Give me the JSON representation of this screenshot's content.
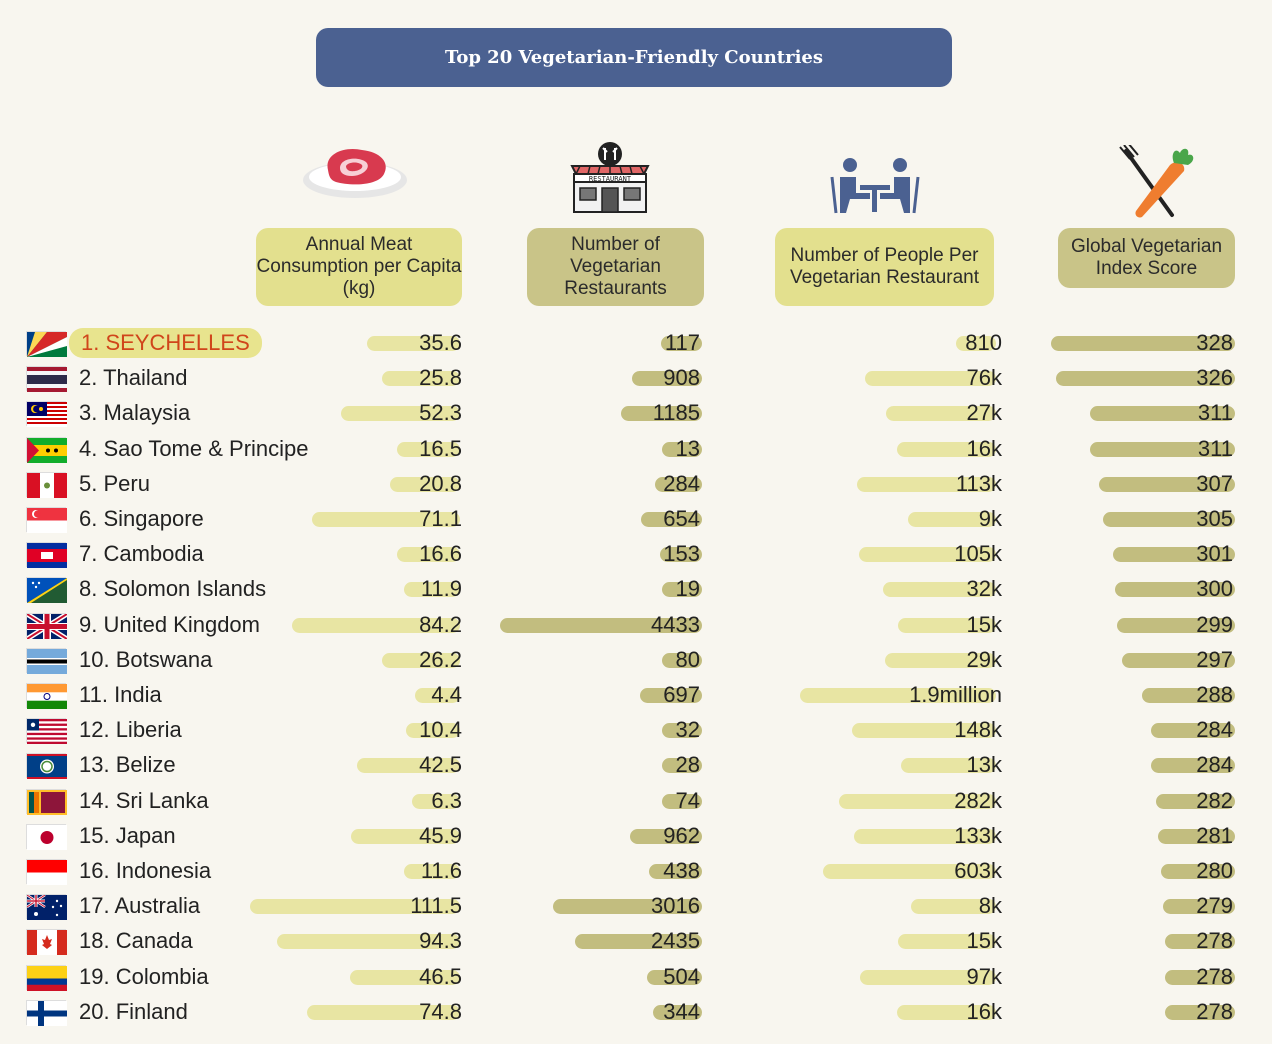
{
  "title": "Top 20 Vegetarian-Friendly Countries",
  "columns": [
    {
      "key": "meat",
      "label": "Annual Meat Consumption per Capita (kg)",
      "icon": "meat-icon"
    },
    {
      "key": "restaurants",
      "label": "Number of Vegetarian Restaurants",
      "icon": "restaurant-icon"
    },
    {
      "key": "people",
      "label": "Number of People Per Vegetarian Restaurant",
      "icon": "people-icon"
    },
    {
      "key": "score",
      "label": "Global Vegetarian Index Score",
      "icon": "carrot-fork-icon"
    }
  ],
  "colors": {
    "title_bg": "#4b6191",
    "light_bar": "#e8e5a3",
    "dark_bar": "#c2bd7f",
    "highlight_text": "#d0451b"
  },
  "chart_data": {
    "type": "table",
    "title": "Top 20 Vegetarian-Friendly Countries",
    "rows": [
      {
        "country": "1. SEYCHELLES",
        "meat": 35.6,
        "meat_label": "35.6",
        "restaurants": 117,
        "restaurants_label": "117",
        "people": 810,
        "people_label": "810",
        "score": 328,
        "score_label": "328"
      },
      {
        "country": "2. Thailand",
        "meat": 25.8,
        "meat_label": "25.8",
        "restaurants": 908,
        "restaurants_label": "908",
        "people": 76000,
        "people_label": "76k",
        "score": 326,
        "score_label": "326"
      },
      {
        "country": "3. Malaysia",
        "meat": 52.3,
        "meat_label": "52.3",
        "restaurants": 1185,
        "restaurants_label": "1185",
        "people": 27000,
        "people_label": "27k",
        "score": 311,
        "score_label": "311"
      },
      {
        "country": "4. Sao Tome & Principe",
        "meat": 16.5,
        "meat_label": "16.5",
        "restaurants": 13,
        "restaurants_label": "13",
        "people": 16000,
        "people_label": "16k",
        "score": 311,
        "score_label": "311"
      },
      {
        "country": "5. Peru",
        "meat": 20.8,
        "meat_label": "20.8",
        "restaurants": 284,
        "restaurants_label": "284",
        "people": 113000,
        "people_label": "113k",
        "score": 307,
        "score_label": "307"
      },
      {
        "country": "6. Singapore",
        "meat": 71.1,
        "meat_label": "71.1",
        "restaurants": 654,
        "restaurants_label": "654",
        "people": 9000,
        "people_label": "9k",
        "score": 305,
        "score_label": "305"
      },
      {
        "country": "7. Cambodia",
        "meat": 16.6,
        "meat_label": "16.6",
        "restaurants": 153,
        "restaurants_label": "153",
        "people": 105000,
        "people_label": "105k",
        "score": 301,
        "score_label": "301"
      },
      {
        "country": "8. Solomon Islands",
        "meat": 11.9,
        "meat_label": "11.9",
        "restaurants": 19,
        "restaurants_label": "19",
        "people": 32000,
        "people_label": "32k",
        "score": 300,
        "score_label": "300"
      },
      {
        "country": "9. United Kingdom",
        "meat": 84.2,
        "meat_label": "84.2",
        "restaurants": 4433,
        "restaurants_label": "4433",
        "people": 15000,
        "people_label": "15k",
        "score": 299,
        "score_label": "299"
      },
      {
        "country": "10. Botswana",
        "meat": 26.2,
        "meat_label": "26.2",
        "restaurants": 80,
        "restaurants_label": "80",
        "people": 29000,
        "people_label": "29k",
        "score": 297,
        "score_label": "297"
      },
      {
        "country": "11. India",
        "meat": 4.4,
        "meat_label": "4.4",
        "restaurants": 697,
        "restaurants_label": "697",
        "people": 1900000,
        "people_label": "1.9million",
        "score": 288,
        "score_label": "288"
      },
      {
        "country": "12. Liberia",
        "meat": 10.4,
        "meat_label": "10.4",
        "restaurants": 32,
        "restaurants_label": "32",
        "people": 148000,
        "people_label": "148k",
        "score": 284,
        "score_label": "284"
      },
      {
        "country": "13. Belize",
        "meat": 42.5,
        "meat_label": "42.5",
        "restaurants": 28,
        "restaurants_label": "28",
        "people": 13000,
        "people_label": "13k",
        "score": 284,
        "score_label": "284"
      },
      {
        "country": "14. Sri Lanka",
        "meat": 6.3,
        "meat_label": "6.3",
        "restaurants": 74,
        "restaurants_label": "74",
        "people": 282000,
        "people_label": "282k",
        "score": 282,
        "score_label": "282"
      },
      {
        "country": "15. Japan",
        "meat": 45.9,
        "meat_label": "45.9",
        "restaurants": 962,
        "restaurants_label": "962",
        "people": 133000,
        "people_label": "133k",
        "score": 281,
        "score_label": "281"
      },
      {
        "country": "16. Indonesia",
        "meat": 11.6,
        "meat_label": "11.6",
        "restaurants": 438,
        "restaurants_label": "438",
        "people": 603000,
        "people_label": "603k",
        "score": 280,
        "score_label": "280"
      },
      {
        "country": "17. Australia",
        "meat": 111.5,
        "meat_label": "111.5",
        "restaurants": 3016,
        "restaurants_label": "3016",
        "people": 8000,
        "people_label": "8k",
        "score": 279,
        "score_label": "279"
      },
      {
        "country": "18. Canada",
        "meat": 94.3,
        "meat_label": "94.3",
        "restaurants": 2435,
        "restaurants_label": "2435",
        "people": 15000,
        "people_label": "15k",
        "score": 278,
        "score_label": "278"
      },
      {
        "country": "19. Colombia",
        "meat": 46.5,
        "meat_label": "46.5",
        "restaurants": 504,
        "restaurants_label": "504",
        "people": 97000,
        "people_label": "97k",
        "score": 278,
        "score_label": "278"
      },
      {
        "country": "20. Finland",
        "meat": 74.8,
        "meat_label": "74.8",
        "restaurants": 344,
        "restaurants_label": "344",
        "people": 16000,
        "people_label": "16k",
        "score": 278,
        "score_label": "278"
      }
    ]
  }
}
